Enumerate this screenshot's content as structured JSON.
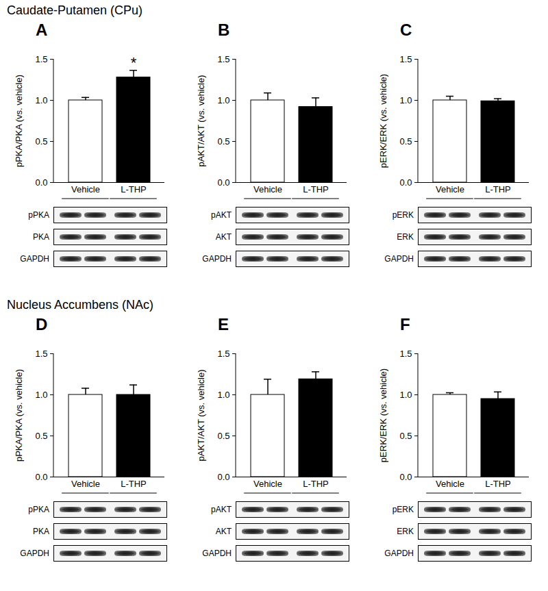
{
  "section_titles": [
    "Caudate-Putamen (CPu)",
    "Nucleus Accumbens (NAc)"
  ],
  "chart_data": [
    {
      "panel": "A",
      "type": "bar",
      "y_label": "pPKA/PKA (vs. vehicle)",
      "categories": [
        "Vehicle",
        "L-THP"
      ],
      "values": [
        1.0,
        1.28
      ],
      "errors": [
        0.035,
        0.085
      ],
      "colors": [
        "#ffffff",
        "#000000"
      ],
      "ylim": [
        0,
        1.5
      ],
      "yticks": [
        {
          "value": 0,
          "label": "0.0"
        },
        {
          "value": 0.5,
          "label": "0.5"
        },
        {
          "value": 1,
          "label": "1.0"
        },
        {
          "value": 1.5,
          "label": "1.5"
        }
      ],
      "annotations": [
        {
          "category": "L-THP",
          "text": "*"
        }
      ],
      "blot_rows": [
        "pPKA",
        "PKA",
        "GAPDH"
      ]
    },
    {
      "panel": "B",
      "type": "bar",
      "y_label": "pAKT/AKT (vs. vehicle)",
      "categories": [
        "Vehicle",
        "L-THP"
      ],
      "values": [
        1.0,
        0.92
      ],
      "errors": [
        0.09,
        0.11
      ],
      "colors": [
        "#ffffff",
        "#000000"
      ],
      "ylim": [
        0,
        1.5
      ],
      "yticks": [
        {
          "value": 0,
          "label": "0.0"
        },
        {
          "value": 0.5,
          "label": "0.5"
        },
        {
          "value": 1,
          "label": "1.0"
        },
        {
          "value": 1.5,
          "label": "1.5"
        }
      ],
      "blot_rows": [
        "pAKT",
        "AKT",
        "GAPDH"
      ]
    },
    {
      "panel": "C",
      "type": "bar",
      "y_label": "pERK/ERK (vs. vehicle)",
      "categories": [
        "Vehicle",
        "L-THP"
      ],
      "values": [
        1.0,
        0.99
      ],
      "errors": [
        0.05,
        0.03
      ],
      "colors": [
        "#ffffff",
        "#000000"
      ],
      "ylim": [
        0,
        1.5
      ],
      "yticks": [
        {
          "value": 0,
          "label": "0.0"
        },
        {
          "value": 0.5,
          "label": "0.5"
        },
        {
          "value": 1,
          "label": "1.0"
        },
        {
          "value": 1.5,
          "label": "1.5"
        }
      ],
      "blot_rows": [
        "pERK",
        "ERK",
        "GAPDH"
      ]
    },
    {
      "panel": "D",
      "type": "bar",
      "y_label": "pPKA/PKA (vs. vehicle)",
      "categories": [
        "Vehicle",
        "L-THP"
      ],
      "values": [
        1.0,
        1.0
      ],
      "errors": [
        0.08,
        0.12
      ],
      "colors": [
        "#ffffff",
        "#000000"
      ],
      "ylim": [
        0,
        1.5
      ],
      "yticks": [
        {
          "value": 0,
          "label": "0.0"
        },
        {
          "value": 0.5,
          "label": "0.5"
        },
        {
          "value": 1,
          "label": "1.0"
        },
        {
          "value": 1.5,
          "label": "1.5"
        }
      ],
      "blot_rows": [
        "pPKA",
        "PKA",
        "GAPDH"
      ]
    },
    {
      "panel": "E",
      "type": "bar",
      "y_label": "pAKT/AKT (vs. vehicle)",
      "categories": [
        "Vehicle",
        "L-THP"
      ],
      "values": [
        1.0,
        1.19
      ],
      "errors": [
        0.19,
        0.09
      ],
      "colors": [
        "#ffffff",
        "#000000"
      ],
      "ylim": [
        0,
        1.5
      ],
      "yticks": [
        {
          "value": 0,
          "label": "0.0"
        },
        {
          "value": 0.5,
          "label": "0.5"
        },
        {
          "value": 1,
          "label": "1.0"
        },
        {
          "value": 1.5,
          "label": "1.5"
        }
      ],
      "blot_rows": [
        "pAKT",
        "AKT",
        "GAPDH"
      ]
    },
    {
      "panel": "F",
      "type": "bar",
      "y_label": "pERK/ERK (vs. vehicle)",
      "categories": [
        "Vehicle",
        "L-THP"
      ],
      "values": [
        1.0,
        0.95
      ],
      "errors": [
        0.025,
        0.085
      ],
      "colors": [
        "#ffffff",
        "#000000"
      ],
      "ylim": [
        0,
        1.5
      ],
      "yticks": [
        {
          "value": 0,
          "label": "0.0"
        },
        {
          "value": 0.5,
          "label": "0.5"
        },
        {
          "value": 1,
          "label": "1.0"
        },
        {
          "value": 1.5,
          "label": "1.5"
        }
      ],
      "blot_rows": [
        "pERK",
        "ERK",
        "GAPDH"
      ]
    }
  ]
}
